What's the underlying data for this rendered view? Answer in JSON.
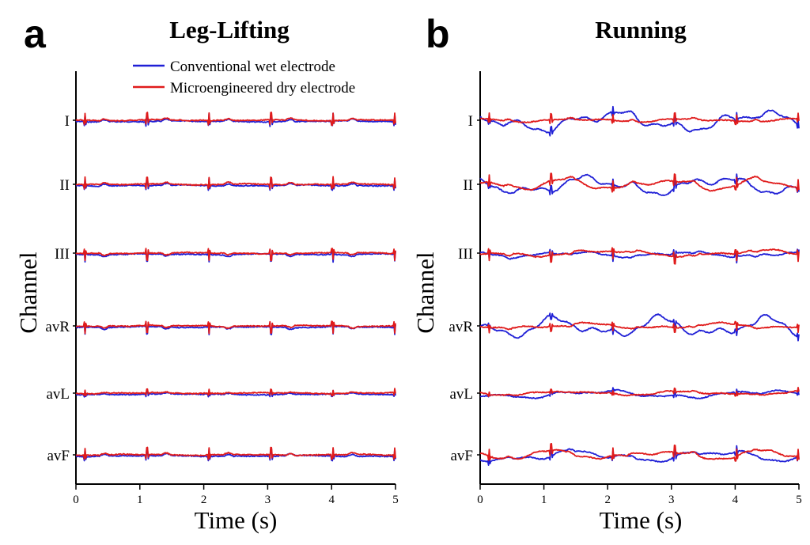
{
  "chart_data": [
    {
      "type": "line",
      "panel": "a",
      "title": "Leg-Lifting",
      "xlabel": "Time (s)",
      "ylabel": "Channel",
      "xlim": [
        0,
        5
      ],
      "xticks": [
        "0",
        "1",
        "2",
        "3",
        "4",
        "5"
      ],
      "channels": [
        "I",
        "II",
        "III",
        "avR",
        "avL",
        "avF"
      ],
      "legend_position": "top",
      "series": [
        {
          "name": "Conventional wet electrode",
          "color": "#1f1fd6",
          "noise": [
            0.05,
            0.05,
            0.05,
            0.05,
            0.05,
            0.05
          ],
          "beat": [
            1,
            1,
            -1,
            -1,
            0.5,
            1
          ]
        },
        {
          "name": "Microengineered dry electrode",
          "color": "#e01b1b",
          "noise": [
            0.05,
            0.05,
            0.05,
            0.05,
            0.05,
            0.05
          ],
          "beat": [
            1,
            1,
            -1,
            -1,
            0.5,
            1
          ]
        }
      ]
    },
    {
      "type": "line",
      "panel": "b",
      "title": "Running",
      "xlabel": "Time (s)",
      "ylabel": "Channel",
      "xlim": [
        0,
        5
      ],
      "xticks": [
        "0",
        "1",
        "2",
        "3",
        "4",
        "5"
      ],
      "channels": [
        "I",
        "II",
        "III",
        "avR",
        "avL",
        "avF"
      ],
      "series": [
        {
          "name": "Conventional wet electrode",
          "color": "#1f1fd6",
          "noise": [
            0.9,
            0.8,
            0.25,
            0.9,
            0.35,
            0.5
          ],
          "beat": [
            0.8,
            0.8,
            -0.8,
            -0.6,
            0.4,
            0.8
          ]
        },
        {
          "name": "Microengineered dry electrode",
          "color": "#e01b1b",
          "noise": [
            0.15,
            0.5,
            0.3,
            0.25,
            0.2,
            0.4
          ],
          "beat": [
            0.8,
            1,
            -1,
            -0.7,
            0.4,
            1
          ]
        }
      ]
    }
  ]
}
